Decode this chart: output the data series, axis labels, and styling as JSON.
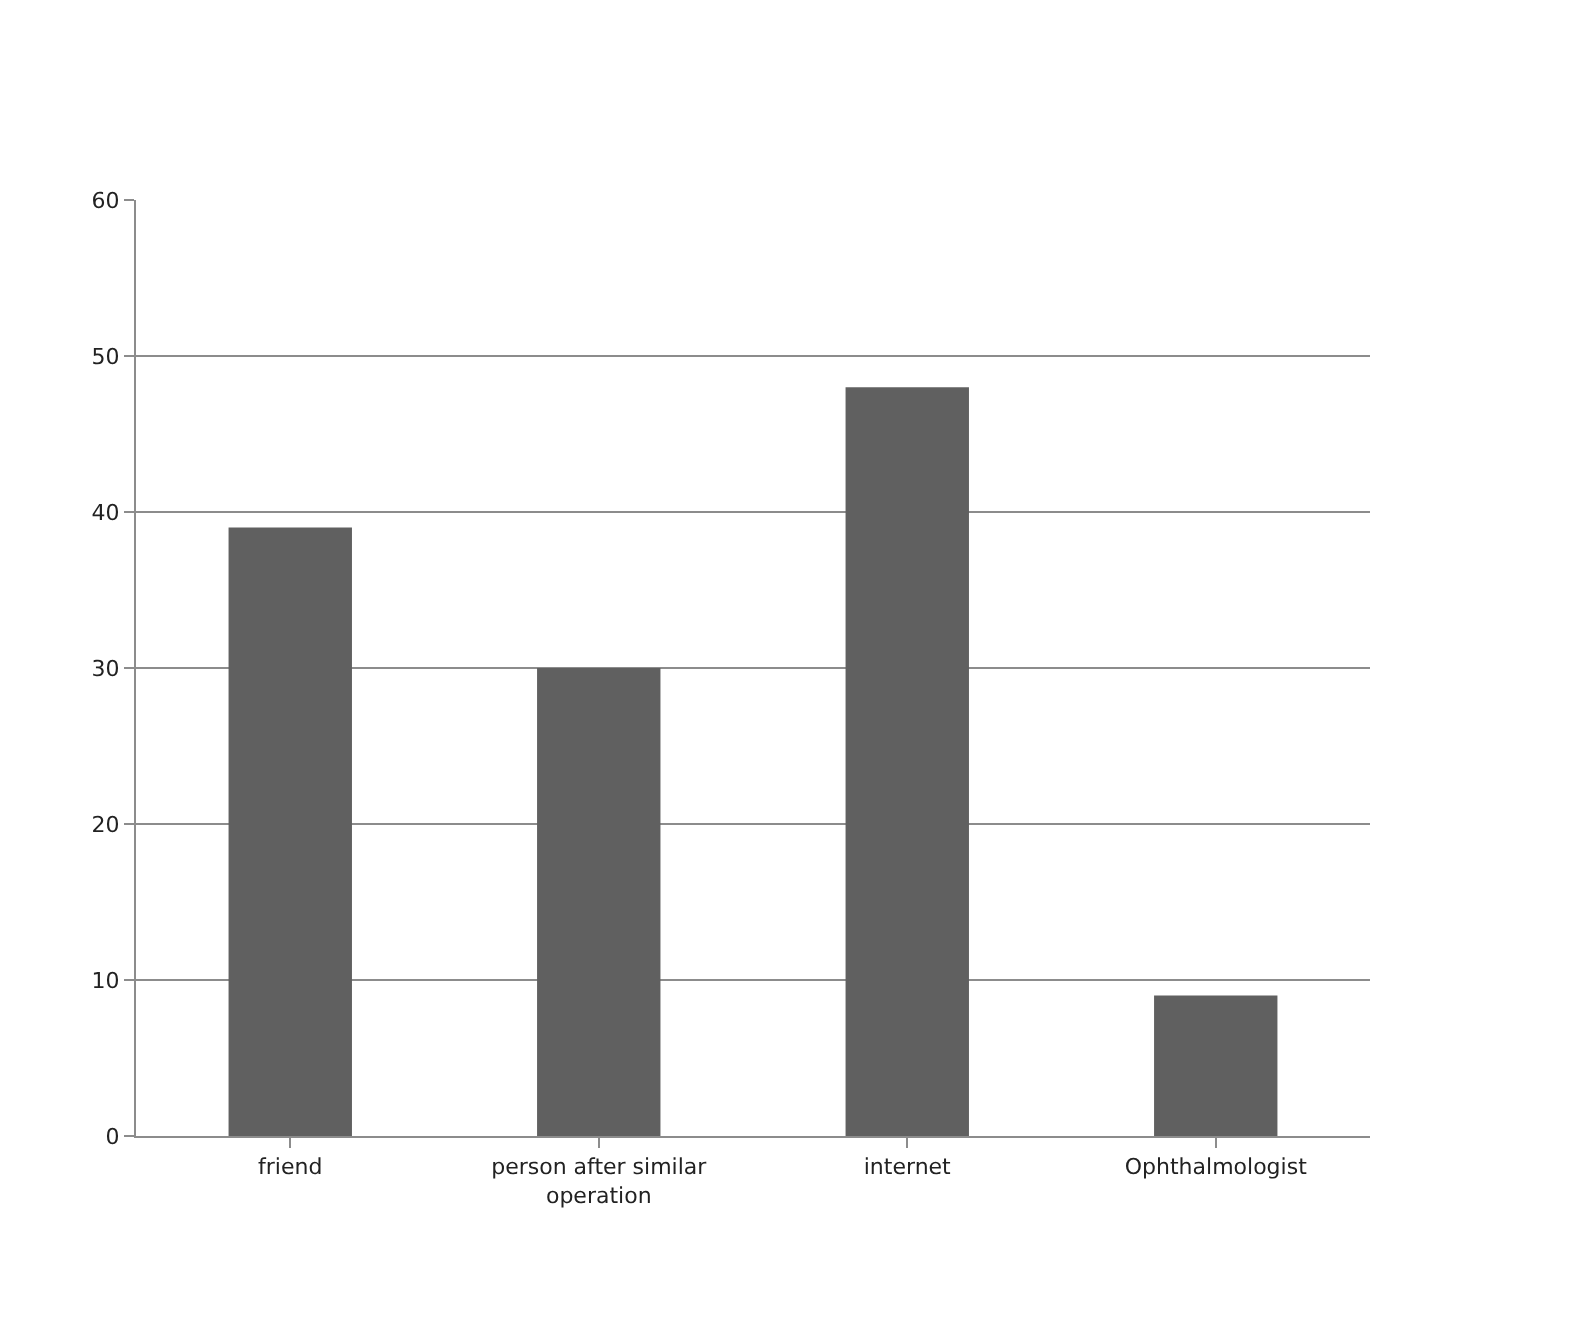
{
  "chart_data": {
    "type": "bar",
    "categories": [
      "friend",
      "person after similar operation",
      "internet",
      "Ophthalmologist"
    ],
    "values": [
      39,
      30,
      48,
      9
    ],
    "color": "#606060",
    "ylim": [
      0,
      60
    ],
    "yticks": [
      0,
      10,
      20,
      30,
      40,
      50,
      60
    ],
    "grid": "y",
    "legend": false
  }
}
